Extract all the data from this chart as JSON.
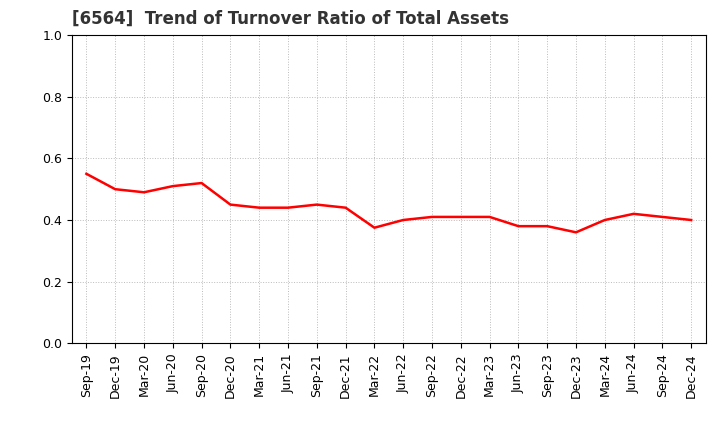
{
  "title": "[6564]  Trend of Turnover Ratio of Total Assets",
  "labels": [
    "Sep-19",
    "Dec-19",
    "Mar-20",
    "Jun-20",
    "Sep-20",
    "Dec-20",
    "Mar-21",
    "Jun-21",
    "Sep-21",
    "Dec-21",
    "Mar-22",
    "Jun-22",
    "Sep-22",
    "Dec-22",
    "Mar-23",
    "Jun-23",
    "Sep-23",
    "Dec-23",
    "Mar-24",
    "Jun-24",
    "Sep-24",
    "Dec-24"
  ],
  "values": [
    0.55,
    0.5,
    0.49,
    0.51,
    0.52,
    0.45,
    0.44,
    0.44,
    0.45,
    0.44,
    0.375,
    0.4,
    0.41,
    0.41,
    0.41,
    0.38,
    0.38,
    0.36,
    0.4,
    0.42,
    0.41,
    0.4
  ],
  "line_color": "#FF0000",
  "line_width": 1.8,
  "ylim": [
    0.0,
    1.0
  ],
  "yticks": [
    0.0,
    0.2,
    0.4,
    0.6,
    0.8,
    1.0
  ],
  "background_color": "#ffffff",
  "grid_color": "#bbbbbb",
  "title_fontsize": 12,
  "tick_fontsize": 9,
  "title_color": "#333333"
}
